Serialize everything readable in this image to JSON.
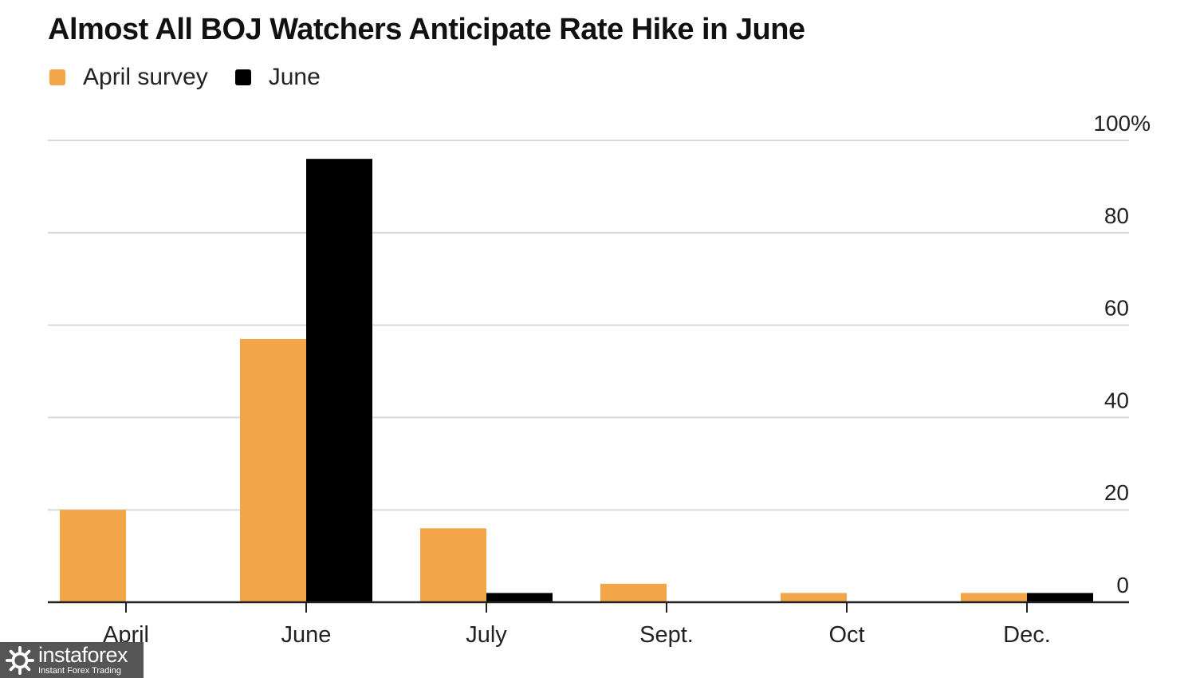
{
  "title": "Almost All BOJ Watchers Anticipate Rate Hike in June",
  "colors": {
    "april": "#F2A649",
    "june": "#000000",
    "grid": "#d9d9d9",
    "axis": "#222222"
  },
  "chart_data": {
    "type": "bar",
    "title": "Almost All BOJ Watchers Anticipate Rate Hike in June",
    "categories": [
      "April",
      "June",
      "July",
      "Sept.",
      "Oct",
      "Dec."
    ],
    "series": [
      {
        "name": "April survey",
        "color": "#F2A649",
        "values": [
          20,
          57,
          16,
          4,
          2,
          2
        ]
      },
      {
        "name": "June",
        "color": "#000000",
        "values": [
          0,
          96,
          2,
          0,
          0,
          2
        ]
      }
    ],
    "ylim": [
      0,
      100
    ],
    "yticks": [
      0,
      20,
      40,
      60,
      80,
      100
    ],
    "ytick_labels": [
      "0",
      "20",
      "40",
      "60",
      "80",
      "100%"
    ],
    "y_axis_side": "right",
    "grid": true,
    "legend_position": "top-left"
  },
  "watermark": {
    "brand": "instaforex",
    "tagline": "Instant Forex Trading"
  }
}
